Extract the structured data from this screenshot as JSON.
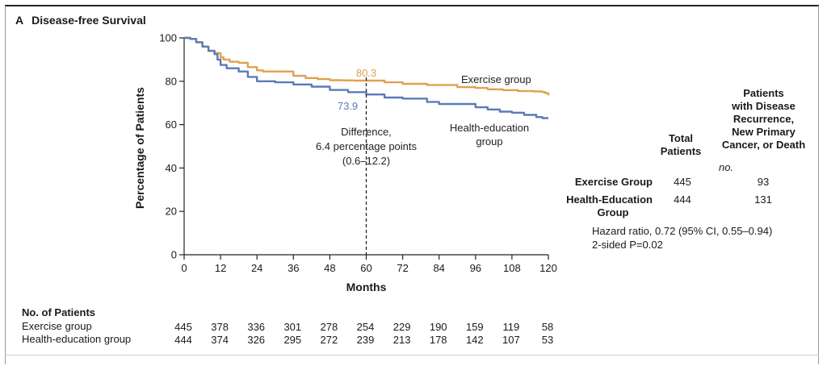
{
  "panel": {
    "letter": "A",
    "title": "Disease-free Survival"
  },
  "chart_data": {
    "type": "line",
    "xlabel": "Months",
    "ylabel": "Percentage of Patients",
    "xlim": [
      0,
      120
    ],
    "ylim": [
      0,
      100
    ],
    "xticks": [
      "0",
      "12",
      "24",
      "36",
      "48",
      "60",
      "72",
      "84",
      "96",
      "108",
      "120"
    ],
    "yticks": [
      "0",
      "20",
      "40",
      "60",
      "80",
      "100"
    ],
    "grid": false,
    "series": [
      {
        "name": "Exercise group",
        "color": "#e0a050",
        "x": [
          0,
          2,
          4,
          6,
          8,
          10,
          12,
          13,
          15,
          18,
          21,
          24,
          26,
          30,
          36,
          40,
          44,
          48,
          52,
          56,
          60,
          66,
          72,
          80,
          90,
          96,
          100,
          105,
          110,
          115,
          118,
          119,
          120
        ],
        "y": [
          100,
          99.5,
          98,
          96,
          94,
          93,
          91,
          90,
          89,
          88.5,
          86.5,
          85,
          84.5,
          84.5,
          82.5,
          81.5,
          81,
          80.5,
          80.4,
          80.3,
          80.3,
          79.5,
          78.8,
          78.3,
          77.3,
          76.9,
          76.3,
          75.9,
          75.5,
          75.3,
          75,
          74.5,
          73.5
        ]
      },
      {
        "name": "Health-education group",
        "color": "#5a7ab8",
        "x": [
          0,
          2,
          4,
          6,
          8,
          10,
          11,
          12,
          14,
          18,
          21,
          24,
          30,
          36,
          42,
          48,
          54,
          60,
          66,
          72,
          80,
          84,
          88,
          96,
          100,
          104,
          108,
          112,
          116,
          118,
          120
        ],
        "y": [
          100,
          99.5,
          98,
          96,
          94,
          92.5,
          90,
          87.5,
          86,
          84.5,
          82,
          80,
          79.5,
          78.5,
          77.5,
          76,
          75,
          73.9,
          72.5,
          72,
          70.5,
          69.5,
          69.5,
          68,
          67,
          66,
          65.5,
          64.5,
          63.5,
          63,
          63
        ]
      }
    ],
    "annotations": {
      "exercise_value": "80.3",
      "health_value": "73.9",
      "exercise_label": "Exercise group",
      "health_label_line1": "Health-education",
      "health_label_line2": "group",
      "diff_line1": "Difference,",
      "diff_line2": "6.4 percentage points",
      "diff_line3": "(0.6–12.2)",
      "marker_month": 60
    }
  },
  "summary_table": {
    "col_total": [
      "Total",
      "Patients"
    ],
    "col_events": [
      "Patients",
      "with Disease",
      "Recurrence,",
      "New Primary",
      "Cancer, or Death"
    ],
    "unit": "no.",
    "rows": [
      {
        "label": [
          "Exercise Group"
        ],
        "total": "445",
        "events": "93"
      },
      {
        "label": [
          "Health-Education",
          "Group"
        ],
        "total": "444",
        "events": "131"
      }
    ],
    "hazard_ratio": "Hazard ratio, 0.72 (95% CI, 0.55–0.94)",
    "p_value": "2-sided P=0.02"
  },
  "risk_table": {
    "title": "No. of Patients",
    "rows": [
      {
        "label": "Exercise group",
        "values": [
          "445",
          "378",
          "336",
          "301",
          "278",
          "254",
          "229",
          "190",
          "159",
          "119",
          "58"
        ]
      },
      {
        "label": "Health-education group",
        "values": [
          "444",
          "374",
          "326",
          "295",
          "272",
          "239",
          "213",
          "178",
          "142",
          "107",
          "53"
        ]
      }
    ]
  }
}
